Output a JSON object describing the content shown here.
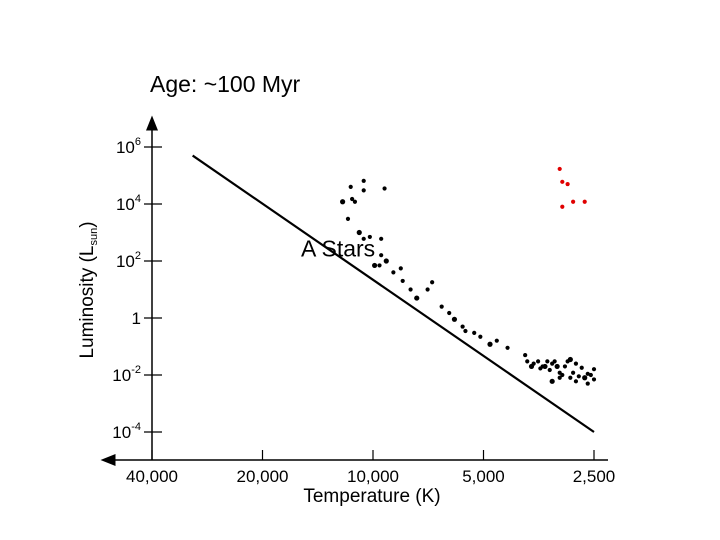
{
  "chart_data": {
    "type": "scatter",
    "title": "Age: ~100 Myr",
    "xlabel": "Temperature (K)",
    "ylabel": {
      "main": "Luminosity (L",
      "sub": "sun",
      "close": ")"
    },
    "x_scale": "reversed",
    "y_scale": "log",
    "grid": false,
    "legend": "none",
    "x_ticks": [
      {
        "value": 40000,
        "label": "40,000"
      },
      {
        "value": 20000,
        "label": "20,000"
      },
      {
        "value": 10000,
        "label": "10,000"
      },
      {
        "value": 5000,
        "label": "5,000"
      },
      {
        "value": 2500,
        "label": "2,500"
      }
    ],
    "y_ticks": [
      {
        "value": 1000000.0,
        "base": "10",
        "exp": "6"
      },
      {
        "value": 10000.0,
        "base": "10",
        "exp": "4"
      },
      {
        "value": 100.0,
        "base": "10",
        "exp": "2"
      },
      {
        "value": 1,
        "base": "1",
        "exp": ""
      },
      {
        "value": 0.01,
        "base": "10",
        "exp": "-2"
      },
      {
        "value": 0.0001,
        "base": "10",
        "exp": "-4"
      }
    ],
    "annotations": [
      {
        "text": "A Stars",
        "x": 9500,
        "y": 300
      }
    ],
    "main_sequence_line": [
      {
        "x": 31000,
        "y": 500000
      },
      {
        "x": 2500,
        "y": 0.0001
      }
    ],
    "colors": {
      "main_stars": "#000000",
      "giants": "#e00000",
      "line": "#000000"
    },
    "series": [
      {
        "color": "#000000",
        "points": [
          [
            12100,
            12000
          ],
          [
            11700,
            3000
          ],
          [
            11500,
            40000
          ],
          [
            11400,
            15000
          ],
          [
            11200,
            12000
          ],
          [
            10900,
            1000
          ],
          [
            10600,
            600
          ],
          [
            10600,
            65000
          ],
          [
            10600,
            30000
          ],
          [
            10200,
            700
          ],
          [
            9900,
            70
          ],
          [
            9600,
            70
          ],
          [
            9500,
            600
          ],
          [
            9500,
            160
          ],
          [
            9300,
            35000
          ],
          [
            9200,
            100
          ],
          [
            8800,
            40
          ],
          [
            8400,
            55
          ],
          [
            8300,
            20
          ],
          [
            7900,
            10
          ],
          [
            7600,
            5
          ],
          [
            7100,
            10
          ],
          [
            6900,
            18
          ],
          [
            6500,
            2.5
          ],
          [
            6200,
            1.5
          ],
          [
            6000,
            0.9
          ],
          [
            5700,
            0.5
          ],
          [
            5600,
            0.35
          ],
          [
            5300,
            0.3
          ],
          [
            5100,
            0.22
          ],
          [
            4800,
            0.12
          ],
          [
            4600,
            0.16
          ],
          [
            4300,
            0.09
          ],
          [
            3850,
            0.05
          ],
          [
            3800,
            0.03
          ],
          [
            3700,
            0.02
          ],
          [
            3650,
            0.025
          ],
          [
            3550,
            0.03
          ],
          [
            3500,
            0.017
          ],
          [
            3450,
            0.02
          ],
          [
            3400,
            0.02
          ],
          [
            3350,
            0.03
          ],
          [
            3300,
            0.015
          ],
          [
            3250,
            0.025
          ],
          [
            3200,
            0.03
          ],
          [
            3150,
            0.02
          ],
          [
            3100,
            0.012
          ],
          [
            3050,
            0.01
          ],
          [
            3000,
            0.02
          ],
          [
            2950,
            0.03
          ],
          [
            2900,
            0.035
          ],
          [
            2850,
            0.012
          ],
          [
            2800,
            0.025
          ],
          [
            2750,
            0.009
          ],
          [
            2700,
            0.018
          ],
          [
            2650,
            0.008
          ],
          [
            2600,
            0.011
          ],
          [
            2550,
            0.01
          ],
          [
            2500,
            0.016
          ],
          [
            2500,
            0.007
          ],
          [
            3250,
            0.006
          ],
          [
            3100,
            0.008
          ],
          [
            2900,
            0.008
          ],
          [
            2800,
            0.006
          ],
          [
            2600,
            0.005
          ]
        ]
      },
      {
        "color": "#e00000",
        "points": [
          [
            3100,
            170000
          ],
          [
            3050,
            60000
          ],
          [
            2950,
            50000
          ],
          [
            3050,
            8000
          ],
          [
            2850,
            12000
          ],
          [
            2650,
            12000
          ]
        ]
      }
    ]
  }
}
